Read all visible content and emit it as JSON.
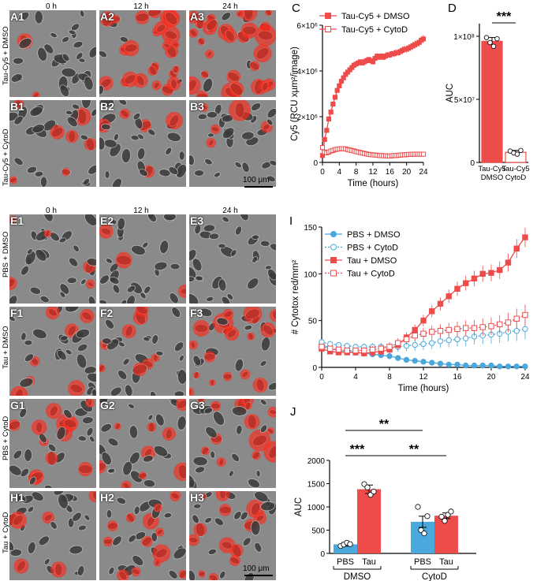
{
  "micrographs": {
    "top": {
      "time_headers": [
        "0 h",
        "12 h",
        "24 h"
      ],
      "rows": [
        {
          "row_label": "Tau-Cy5 + DMSO",
          "panels": [
            "A1",
            "A2",
            "A3"
          ],
          "red_level": [
            0.08,
            0.75,
            0.85
          ]
        },
        {
          "row_label": "Tau-Cy5 + CytoD",
          "panels": [
            "B1",
            "B2",
            "B3"
          ],
          "red_level": [
            0.15,
            0.12,
            0.12
          ]
        }
      ],
      "scale_bar": "100 μm"
    },
    "bottom": {
      "time_headers": [
        "0 h",
        "12 h",
        "24 h"
      ],
      "rows": [
        {
          "row_label": "PBS + DMSO",
          "panels": [
            "E1",
            "E2",
            "E3"
          ],
          "red_level": [
            0.2,
            0.06,
            0.04
          ]
        },
        {
          "row_label": "Tau + DMSO",
          "panels": [
            "F1",
            "F2",
            "F3"
          ],
          "red_level": [
            0.12,
            0.35,
            0.55
          ]
        },
        {
          "row_label": "PBS + CytoD",
          "panels": [
            "G1",
            "G2",
            "G3"
          ],
          "red_level": [
            0.35,
            0.4,
            0.45
          ]
        },
        {
          "row_label": "Tau + CytoD",
          "panels": [
            "H1",
            "H2",
            "H3"
          ],
          "red_level": [
            0.25,
            0.35,
            0.45
          ]
        }
      ],
      "scale_bar": "100 μm"
    }
  },
  "chart_data": [
    {
      "id": "C",
      "panel_letter": "C",
      "type": "line",
      "xlabel": "Time (hours)",
      "ylabel": "Cy5 (RCU xµm²/image)",
      "xlim": [
        0,
        24
      ],
      "ylim": [
        0,
        6000000
      ],
      "xticks": [
        0,
        4,
        8,
        12,
        16,
        20,
        24
      ],
      "yticks": [
        {
          "v": 0,
          "label": "0"
        },
        {
          "v": 2000000,
          "label": "2×10⁶"
        },
        {
          "v": 4000000,
          "label": "4×10⁶"
        },
        {
          "v": 6000000,
          "label": "6×10⁶"
        }
      ],
      "legend": "top-left",
      "series": [
        {
          "name": "Tau-Cy5 + DMSO",
          "color": "#ee4b4b",
          "marker": "square",
          "filled": true,
          "x": [
            0,
            0.5,
            1,
            1.5,
            2,
            2.5,
            3,
            3.5,
            4,
            4.5,
            5,
            5.5,
            6,
            6.5,
            7,
            7.5,
            8,
            8.5,
            9,
            9.5,
            10,
            10.5,
            11,
            11.5,
            12,
            12.5,
            13,
            13.5,
            14,
            14.5,
            15,
            15.5,
            16,
            16.5,
            17,
            17.5,
            18,
            18.5,
            19,
            19.5,
            20,
            20.5,
            21,
            21.5,
            22,
            22.5,
            23,
            23.5,
            24
          ],
          "y": [
            300000,
            1000000,
            1400000,
            1900000,
            2200000,
            2550000,
            2850000,
            3150000,
            3350000,
            3550000,
            3700000,
            3850000,
            3950000,
            4050000,
            4150000,
            4250000,
            4300000,
            4350000,
            4400000,
            4350000,
            4400000,
            4450000,
            4500000,
            4450000,
            4400000,
            4550000,
            4650000,
            4600000,
            4650000,
            4600000,
            4650000,
            4700000,
            4700000,
            4750000,
            4750000,
            4800000,
            4800000,
            4850000,
            4900000,
            4950000,
            4950000,
            5000000,
            5050000,
            5100000,
            5150000,
            5200000,
            5250000,
            5350000,
            5400000
          ]
        },
        {
          "name": "Tau-Cy5 + CytoD",
          "color": "#ee4b4b",
          "marker": "square",
          "filled": false,
          "x": [
            0,
            0.5,
            1,
            1.5,
            2,
            2.5,
            3,
            3.5,
            4,
            4.5,
            5,
            5.5,
            6,
            6.5,
            7,
            7.5,
            8,
            8.5,
            9,
            9.5,
            10,
            10.5,
            11,
            11.5,
            12,
            12.5,
            13,
            13.5,
            14,
            14.5,
            15,
            15.5,
            16,
            16.5,
            17,
            17.5,
            18,
            18.5,
            19,
            19.5,
            20,
            20.5,
            21,
            21.5,
            22,
            22.5,
            23,
            23.5,
            24
          ],
          "y": [
            650000,
            450000,
            420000,
            450000,
            500000,
            520000,
            560000,
            580000,
            590000,
            600000,
            600000,
            590000,
            560000,
            540000,
            520000,
            500000,
            470000,
            450000,
            430000,
            410000,
            390000,
            370000,
            350000,
            340000,
            330000,
            320000,
            310000,
            300000,
            300000,
            290000,
            290000,
            280000,
            280000,
            290000,
            300000,
            300000,
            310000,
            320000,
            330000,
            330000,
            340000,
            350000,
            350000,
            360000,
            360000,
            360000,
            360000,
            360000,
            360000
          ]
        }
      ]
    },
    {
      "id": "D",
      "panel_letter": "D",
      "type": "bar",
      "ylabel": "AUC",
      "ylim": [
        0,
        110000000
      ],
      "yticks": [
        {
          "v": 0,
          "label": "0"
        },
        {
          "v": 50000000,
          "label": "5×10⁷"
        },
        {
          "v": 100000000,
          "label": "1×10⁸"
        }
      ],
      "categories": [
        "Tau-Cy5\nDMSO",
        "Tau-Cy5\nCytoD"
      ],
      "values": [
        96000000,
        8000000
      ],
      "errors": [
        3000000,
        1500000
      ],
      "points": [
        [
          99000000,
          95000000,
          92000000,
          98000000
        ],
        [
          9000000,
          7500000,
          6500000,
          9500000
        ]
      ],
      "bar_fill": [
        "#ee4b4b",
        "#ffffff"
      ],
      "significance": "***"
    },
    {
      "id": "I",
      "panel_letter": "I",
      "type": "line",
      "xlabel": "Time (hours)",
      "ylabel": "# Cytotox red/mm²",
      "xlim": [
        0,
        24
      ],
      "ylim": [
        0,
        150
      ],
      "xticks": [
        0,
        4,
        8,
        12,
        16,
        20,
        24
      ],
      "yticks": [
        {
          "v": 0,
          "label": "0"
        },
        {
          "v": 50,
          "label": "50"
        },
        {
          "v": 100,
          "label": "100"
        },
        {
          "v": 150,
          "label": "150"
        }
      ],
      "legend": "top-left",
      "series": [
        {
          "name": "PBS + DMSO",
          "color": "#4aa8dc",
          "marker": "circle",
          "filled": true,
          "dashed": false,
          "x": [
            0,
            1,
            2,
            3,
            4,
            5,
            6,
            7,
            8,
            9,
            10,
            11,
            12,
            13,
            14,
            15,
            16,
            17,
            18,
            19,
            20,
            21,
            22,
            23,
            24
          ],
          "y": [
            25,
            20,
            18,
            17,
            16,
            15,
            14,
            13,
            12,
            10,
            8,
            7,
            6,
            5,
            4,
            3,
            3,
            2,
            2,
            2,
            2,
            1,
            1,
            1,
            1
          ]
        },
        {
          "name": "PBS + CytoD",
          "color": "#4aa8dc",
          "marker": "circle",
          "filled": false,
          "dashed": true,
          "x": [
            0,
            1,
            2,
            3,
            4,
            5,
            6,
            7,
            8,
            9,
            10,
            11,
            12,
            13,
            14,
            15,
            16,
            17,
            18,
            19,
            20,
            21,
            22,
            23,
            24
          ],
          "y": [
            27,
            25,
            24,
            23,
            22,
            22,
            22,
            22,
            22,
            22,
            23,
            24,
            25,
            26,
            28,
            29,
            30,
            31,
            33,
            34,
            35,
            36,
            38,
            39,
            41
          ]
        },
        {
          "name": "Tau + DMSO",
          "color": "#ee4b4b",
          "marker": "square",
          "filled": true,
          "dashed": false,
          "x": [
            0,
            1,
            2,
            3,
            4,
            5,
            6,
            7,
            8,
            9,
            10,
            11,
            12,
            13,
            14,
            15,
            16,
            17,
            18,
            19,
            20,
            21,
            22,
            23,
            24
          ],
          "y": [
            20,
            17,
            16,
            16,
            16,
            15,
            16,
            17,
            19,
            24,
            32,
            40,
            50,
            60,
            68,
            76,
            84,
            90,
            95,
            100,
            101,
            104,
            112,
            127,
            139
          ]
        },
        {
          "name": "Tau + CytoD",
          "color": "#ee4b4b",
          "marker": "square",
          "filled": false,
          "dashed": true,
          "x": [
            0,
            1,
            2,
            3,
            4,
            5,
            6,
            7,
            8,
            9,
            10,
            11,
            12,
            13,
            14,
            15,
            16,
            17,
            18,
            19,
            20,
            21,
            22,
            23,
            24
          ],
          "y": [
            22,
            20,
            19,
            18,
            18,
            18,
            19,
            20,
            22,
            26,
            30,
            34,
            36,
            38,
            39,
            40,
            41,
            42,
            42,
            43,
            44,
            46,
            48,
            52,
            56
          ]
        }
      ]
    },
    {
      "id": "J",
      "panel_letter": "J",
      "type": "bar",
      "ylabel": "AUC",
      "ylim": [
        0,
        2000
      ],
      "yticks": [
        {
          "v": 0,
          "label": "0"
        },
        {
          "v": 500,
          "label": "500"
        },
        {
          "v": 1000,
          "label": "1000"
        },
        {
          "v": 1500,
          "label": "1500"
        },
        {
          "v": 2000,
          "label": "2000"
        }
      ],
      "categories": [
        "PBS",
        "Tau",
        "PBS",
        "Tau"
      ],
      "groups": [
        "DMSO",
        "CytoD"
      ],
      "values": [
        195,
        1380,
        680,
        810
      ],
      "errors": [
        40,
        90,
        120,
        60
      ],
      "bar_colors": [
        "#4aa8dc",
        "#ee4b4b",
        "#4aa8dc",
        "#ee4b4b"
      ],
      "points": [
        [
          160,
          190,
          230,
          200
        ],
        [
          1490,
          1420,
          1260,
          1330
        ],
        [
          1000,
          500,
          430,
          800
        ],
        [
          790,
          700,
          830,
          900
        ]
      ],
      "significance": [
        {
          "from": 0,
          "to": 1,
          "label": "***"
        },
        {
          "from": 0,
          "to": 2,
          "label": "**"
        },
        {
          "from": 1,
          "to": 3,
          "label": "**"
        }
      ]
    }
  ]
}
